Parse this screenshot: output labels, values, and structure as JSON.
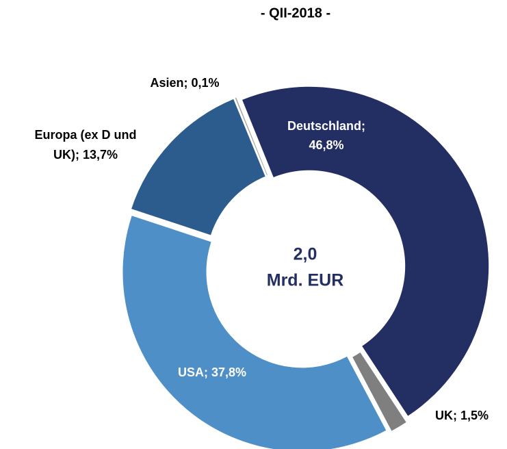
{
  "chart_data": {
    "type": "donut",
    "title": "- QII-2018 -",
    "categories": [
      "Deutschland",
      "UK",
      "USA",
      "Europa (ex D und UK)",
      "Asien"
    ],
    "values": [
      46.8,
      1.5,
      37.8,
      13.7,
      0.1
    ],
    "value_labels": [
      [
        "Deutschland;",
        "46,8%"
      ],
      [
        "UK; 1,5%"
      ],
      [
        "USA; 37,8%"
      ],
      [
        "Europa (ex D und",
        "UK); 13,7%"
      ],
      [
        "Asien; 0,1%"
      ]
    ],
    "colors": [
      "#232f63",
      "#7f7f7f",
      "#4f8fc8",
      "#2c5b8e",
      "#a6a6a6"
    ],
    "label_colors": [
      "#ffffff",
      "#000000",
      "#ffffff",
      "#000000",
      "#000000"
    ],
    "center_label": [
      "2,0",
      "Mrd. EUR"
    ],
    "center_label_color": "#232f63"
  }
}
